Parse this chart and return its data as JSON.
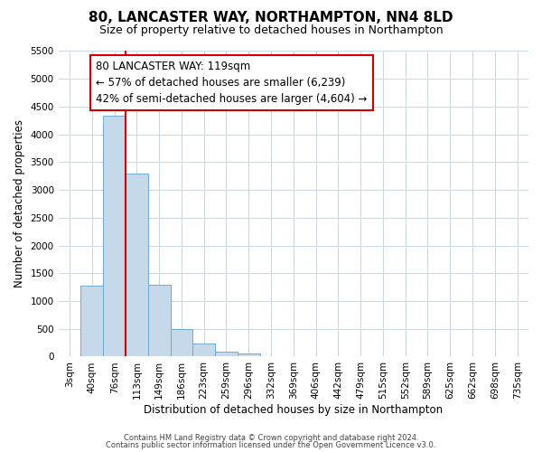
{
  "title": "80, LANCASTER WAY, NORTHAMPTON, NN4 8LD",
  "subtitle": "Size of property relative to detached houses in Northampton",
  "xlabel": "Distribution of detached houses by size in Northampton",
  "ylabel": "Number of detached properties",
  "bar_labels": [
    "3sqm",
    "40sqm",
    "76sqm",
    "113sqm",
    "149sqm",
    "186sqm",
    "223sqm",
    "259sqm",
    "296sqm",
    "332sqm",
    "369sqm",
    "406sqm",
    "442sqm",
    "479sqm",
    "515sqm",
    "552sqm",
    "589sqm",
    "625sqm",
    "662sqm",
    "698sqm",
    "735sqm"
  ],
  "bar_values": [
    0,
    1270,
    4330,
    3290,
    1290,
    490,
    240,
    90,
    50,
    0,
    0,
    0,
    0,
    0,
    0,
    0,
    0,
    0,
    0,
    0,
    0
  ],
  "bar_color": "#c5d9ea",
  "bar_edge_color": "#6aaed6",
  "vline_color": "#cc0000",
  "vline_x_index": 3,
  "ylim": [
    0,
    5500
  ],
  "yticks": [
    0,
    500,
    1000,
    1500,
    2000,
    2500,
    3000,
    3500,
    4000,
    4500,
    5000,
    5500
  ],
  "annotation_line1": "80 LANCASTER WAY: 119sqm",
  "annotation_line2": "← 57% of detached houses are smaller (6,239)",
  "annotation_line3": "42% of semi-detached houses are larger (4,604) →",
  "annotation_box_color": "#cc0000",
  "footer1": "Contains HM Land Registry data © Crown copyright and database right 2024.",
  "footer2": "Contains public sector information licensed under the Open Government Licence v3.0.",
  "background_color": "#ffffff",
  "grid_color": "#c8d8e8",
  "title_fontsize": 11,
  "subtitle_fontsize": 9,
  "axis_label_fontsize": 8.5,
  "tick_fontsize": 7.5,
  "annotation_fontsize": 8.5,
  "footer_fontsize": 6
}
